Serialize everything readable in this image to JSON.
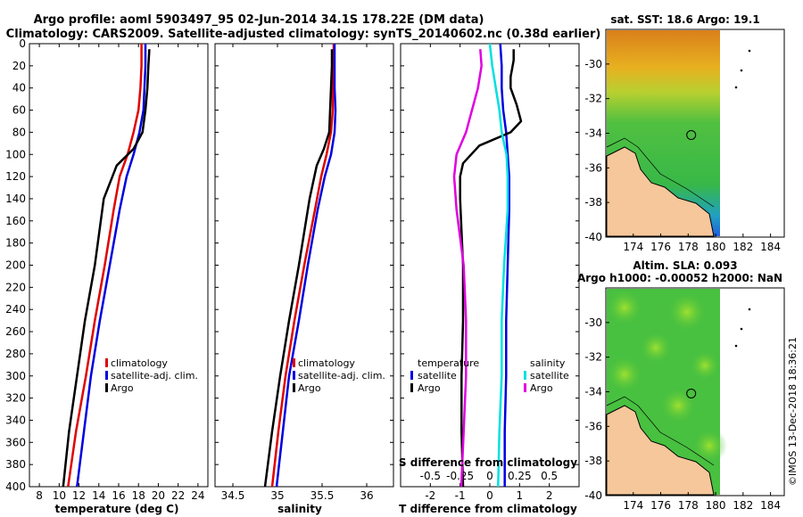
{
  "title": {
    "line1": "Argo profile: aoml 5903497_95 02-Jun-2014 34.1S 178.22E (DM data)",
    "line2": "Climatology: CARS2009. Satellite-adjusted climatology: synTS_20140602.nc (0.38d earlier)"
  },
  "footer": "©IMOS 13-Dec-2018 18:36:21",
  "colors": {
    "climatology": "#e00000",
    "satellite": "#0000e0",
    "argo": "#000000",
    "sat_salinity": "#00e0e0",
    "argo_salinity": "#e000e0",
    "land": "#f5c79a"
  },
  "chart_data": [
    {
      "type": "line",
      "name": "temperature-panel",
      "xlabel": "temperature (deg C)",
      "ylabel": "",
      "xlim": [
        7,
        25
      ],
      "ylim": [
        400,
        0
      ],
      "xticks": [
        8,
        10,
        12,
        14,
        16,
        18,
        20,
        22,
        24
      ],
      "yticks": [
        0,
        20,
        40,
        60,
        80,
        100,
        120,
        140,
        160,
        180,
        200,
        220,
        240,
        260,
        280,
        300,
        320,
        340,
        360,
        380,
        400
      ],
      "legend": [
        "climatology",
        "satellite-adj. clim.",
        "Argo"
      ],
      "series": [
        {
          "name": "climatology",
          "color": "#e00000",
          "x": [
            18.3,
            18.3,
            18.2,
            18.0,
            17.5,
            16.9,
            16.1,
            15.5,
            14.6,
            13.6,
            12.7,
            11.7,
            10.9
          ],
          "y": [
            0,
            20,
            40,
            60,
            80,
            100,
            120,
            150,
            200,
            250,
            300,
            350,
            400
          ]
        },
        {
          "name": "satellite-adj. clim.",
          "color": "#0000e0",
          "x": [
            18.7,
            18.7,
            18.6,
            18.5,
            18.1,
            17.5,
            16.8,
            16.1,
            15.1,
            14.1,
            13.2,
            12.5,
            11.8
          ],
          "y": [
            0,
            20,
            40,
            60,
            80,
            100,
            120,
            150,
            200,
            250,
            300,
            350,
            400
          ]
        },
        {
          "name": "Argo",
          "color": "#000000",
          "x": [
            19.1,
            19.0,
            18.9,
            18.7,
            18.4,
            17.5,
            15.8,
            14.5,
            13.6,
            12.6,
            11.8,
            11.0,
            10.4
          ],
          "y": [
            5,
            20,
            40,
            60,
            80,
            95,
            110,
            140,
            200,
            250,
            300,
            350,
            400
          ]
        }
      ]
    },
    {
      "type": "line",
      "name": "salinity-panel",
      "xlabel": "salinity",
      "xlim": [
        34.3,
        36.3
      ],
      "ylim": [
        400,
        0
      ],
      "xticks": [
        34.5,
        35,
        35.5,
        36
      ],
      "legend": [
        "climatology",
        "satellite-adj. clim.",
        "Argo"
      ],
      "series": [
        {
          "name": "climatology",
          "color": "#e00000",
          "x": [
            35.63,
            35.63,
            35.62,
            35.62,
            35.6,
            35.55,
            35.49,
            35.42,
            35.3,
            35.19,
            35.09,
            35.01,
            34.94
          ],
          "y": [
            0,
            20,
            40,
            60,
            80,
            100,
            120,
            150,
            200,
            250,
            300,
            350,
            400
          ]
        },
        {
          "name": "satellite-adj. clim.",
          "color": "#0000e0",
          "x": [
            35.64,
            35.64,
            35.64,
            35.65,
            35.64,
            35.6,
            35.53,
            35.45,
            35.34,
            35.24,
            35.13,
            35.06,
            34.99
          ],
          "y": [
            0,
            20,
            40,
            60,
            80,
            100,
            120,
            150,
            200,
            250,
            300,
            350,
            400
          ]
        },
        {
          "name": "Argo",
          "color": "#000000",
          "x": [
            35.61,
            35.61,
            35.6,
            35.59,
            35.58,
            35.52,
            35.44,
            35.36,
            35.24,
            35.13,
            35.03,
            34.94,
            34.86
          ],
          "y": [
            5,
            20,
            40,
            60,
            80,
            95,
            110,
            140,
            200,
            250,
            300,
            350,
            400
          ]
        }
      ]
    },
    {
      "type": "line",
      "name": "difference-panel",
      "xlabel": "T difference from climatology",
      "xlabel2": "S difference from climatology",
      "xlim": [
        -3,
        3
      ],
      "ylim": [
        400,
        0
      ],
      "xticks": [
        -2,
        -1,
        0,
        1,
        2
      ],
      "xticks2": [
        -0.5,
        -0.25,
        0,
        0.25,
        0.5
      ],
      "legend_temperature_title": "temperature",
      "legend_salinity_title": "salinity",
      "legend_temperature": [
        "satellite",
        "Argo"
      ],
      "legend_salinity": [
        "satellite",
        "Argo"
      ],
      "series": [
        {
          "name": "T satellite",
          "color": "#0000e0",
          "x": [
            0.35,
            0.4,
            0.4,
            0.45,
            0.55,
            0.6,
            0.65,
            0.65,
            0.6,
            0.55,
            0.55,
            0.5,
            0.5
          ],
          "y": [
            0,
            20,
            40,
            60,
            80,
            100,
            120,
            150,
            200,
            250,
            300,
            350,
            400
          ]
        },
        {
          "name": "T Argo",
          "color": "#000000",
          "x": [
            0.8,
            0.8,
            0.7,
            0.7,
            0.9,
            1.05,
            0.7,
            -0.35,
            -0.9,
            -1.0,
            -1.0,
            -0.95,
            -0.9,
            -0.9,
            -0.95,
            -0.95,
            -0.9
          ],
          "y": [
            5,
            15,
            30,
            40,
            55,
            70,
            80,
            92,
            108,
            120,
            140,
            170,
            200,
            250,
            300,
            350,
            400
          ]
        },
        {
          "name": "S satellite",
          "color": "#00e0e0",
          "x": [
            0.0,
            0.02,
            0.05,
            0.08,
            0.1,
            0.14,
            0.15,
            0.15,
            0.12,
            0.1,
            0.1,
            0.08,
            0.07
          ],
          "y": [
            0,
            20,
            40,
            60,
            80,
            100,
            120,
            150,
            200,
            250,
            300,
            350,
            400
          ]
        },
        {
          "name": "S Argo",
          "color": "#e000e0",
          "x": [
            -0.08,
            -0.07,
            -0.1,
            -0.15,
            -0.2,
            -0.28,
            -0.3,
            -0.28,
            -0.22,
            -0.2,
            -0.2,
            -0.22,
            -0.24
          ],
          "y": [
            5,
            20,
            40,
            60,
            80,
            100,
            120,
            150,
            200,
            250,
            300,
            350,
            400
          ]
        }
      ]
    },
    {
      "type": "heatmap",
      "name": "sst-map",
      "title": "sat. SST: 18.6 Argo: 19.1",
      "xlim": [
        172,
        185
      ],
      "ylim": [
        -40,
        -28
      ],
      "xticks": [
        174,
        176,
        178,
        180,
        182,
        184
      ],
      "yticks": [
        -30,
        -32,
        -34,
        -36,
        -38,
        -40
      ],
      "argo_position": {
        "lon": 178.22,
        "lat": -34.1
      }
    },
    {
      "type": "heatmap",
      "name": "sla-map",
      "title": "Altim. SLA: 0.093",
      "subtitle": "Argo h1000: -0.00052 h2000: NaN",
      "xlim": [
        172,
        185
      ],
      "ylim": [
        -40,
        -28
      ],
      "xticks": [
        174,
        176,
        178,
        180,
        182,
        184
      ],
      "yticks": [
        -30,
        -32,
        -34,
        -36,
        -38,
        -40
      ],
      "argo_position": {
        "lon": 178.22,
        "lat": -34.1
      }
    }
  ]
}
